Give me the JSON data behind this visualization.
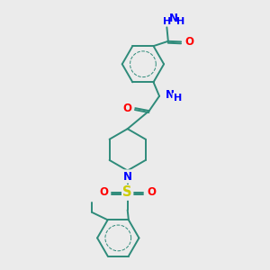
{
  "bg_color": "#ebebeb",
  "bond_color": "#2e8b7a",
  "N_color": "#0000ff",
  "O_color": "#ff0000",
  "S_color": "#cccc00",
  "font_size": 8.5,
  "bond_lw": 1.4,
  "fig_size": [
    3.0,
    3.0
  ],
  "dpi": 100,
  "xlim": [
    0,
    10
  ],
  "ylim": [
    0,
    10
  ]
}
